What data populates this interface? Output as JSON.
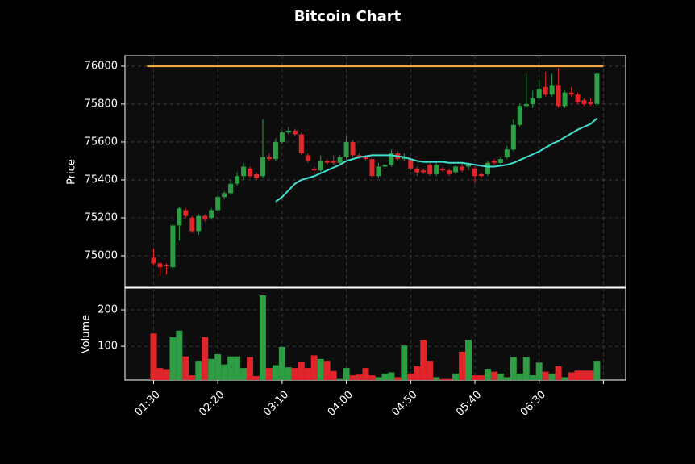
{
  "chart_data": {
    "type": "candlestick",
    "title": "Bitcoin Chart",
    "ylabel": "Price",
    "categories": [
      "01:30",
      null,
      null,
      null,
      null,
      null,
      null,
      null,
      null,
      null,
      "02:20",
      null,
      null,
      null,
      null,
      null,
      null,
      null,
      null,
      null,
      "03:10",
      null,
      null,
      null,
      null,
      null,
      null,
      null,
      null,
      null,
      "04:00",
      null,
      null,
      null,
      null,
      null,
      null,
      null,
      null,
      null,
      "04:50",
      null,
      null,
      null,
      null,
      null,
      null,
      null,
      null,
      null,
      "05:40",
      null,
      null,
      null,
      null,
      null,
      null,
      null,
      null,
      null,
      "06:30",
      null,
      null,
      null,
      null,
      null,
      null,
      null,
      null,
      null
    ],
    "open": [
      74990,
      74960,
      74950,
      74940,
      75160,
      75240,
      75200,
      75130,
      75210,
      75200,
      75240,
      75310,
      75330,
      75380,
      75420,
      75460,
      75430,
      75420,
      75520,
      75510,
      75600,
      75650,
      75660,
      75640,
      75530,
      75460,
      75450,
      75500,
      75500,
      75490,
      75520,
      75600,
      75530,
      75520,
      75510,
      75420,
      75470,
      75480,
      75540,
      75510,
      75510,
      75460,
      75450,
      75480,
      75430,
      75460,
      75450,
      75440,
      75470,
      75470,
      75460,
      75430,
      75430,
      75500,
      75490,
      75520,
      75560,
      75690,
      75790,
      75800,
      75830,
      75890,
      75850,
      75900,
      75790,
      75860,
      75850,
      75820,
      75810,
      75800
    ],
    "high": [
      75040,
      74965,
      74960,
      75170,
      75260,
      75250,
      75210,
      75220,
      75220,
      75250,
      75320,
      75340,
      75400,
      75440,
      75490,
      75470,
      75440,
      75720,
      75540,
      75620,
      75660,
      75680,
      75670,
      75650,
      75540,
      75470,
      75530,
      75510,
      75530,
      75530,
      75630,
      75610,
      75540,
      75530,
      75520,
      75490,
      75490,
      75560,
      75550,
      75540,
      75520,
      75470,
      75460,
      75490,
      75490,
      75470,
      75460,
      75480,
      75490,
      75490,
      75470,
      75440,
      75500,
      75510,
      75520,
      75580,
      75720,
      75800,
      75960,
      75870,
      75930,
      75970,
      75960,
      75990,
      75870,
      75890,
      75860,
      75830,
      75830,
      75970
    ],
    "low": [
      74950,
      74890,
      74900,
      74930,
      75080,
      75200,
      75120,
      75110,
      75180,
      75190,
      75230,
      75300,
      75320,
      75370,
      75400,
      75410,
      75400,
      75410,
      75500,
      75500,
      75590,
      75640,
      75630,
      75530,
      75490,
      75430,
      75440,
      75480,
      75480,
      75480,
      75510,
      75520,
      75510,
      75500,
      75410,
      75410,
      75460,
      75470,
      75500,
      75500,
      75450,
      75420,
      75430,
      75420,
      75420,
      75440,
      75420,
      75430,
      75440,
      75450,
      75380,
      75410,
      75420,
      75480,
      75480,
      75510,
      75550,
      75680,
      75780,
      75780,
      75820,
      75840,
      75840,
      75780,
      75780,
      75840,
      75800,
      75790,
      75790,
      75790
    ],
    "close": [
      74960,
      74940,
      74945,
      75160,
      75250,
      75210,
      75130,
      75210,
      75190,
      75240,
      75310,
      75330,
      75380,
      75420,
      75470,
      75420,
      75410,
      75520,
      75510,
      75600,
      75650,
      75660,
      75640,
      75540,
      75500,
      75450,
      75500,
      75490,
      75490,
      75520,
      75600,
      75530,
      75520,
      75510,
      75420,
      75470,
      75480,
      75540,
      75510,
      75520,
      75460,
      75440,
      75440,
      75430,
      75480,
      75450,
      75430,
      75470,
      75450,
      75480,
      75420,
      75420,
      75490,
      75490,
      75510,
      75560,
      75690,
      75790,
      75800,
      75830,
      75880,
      75850,
      75900,
      75790,
      75860,
      75850,
      75810,
      75800,
      75800,
      75960
    ],
    "volume": [
      135,
      40,
      37,
      125,
      143,
      72,
      20,
      60,
      125,
      65,
      78,
      50,
      72,
      72,
      40,
      70,
      18,
      240,
      40,
      48,
      98,
      42,
      40,
      58,
      40,
      75,
      65,
      60,
      32,
      10,
      40,
      20,
      22,
      40,
      20,
      15,
      25,
      28,
      15,
      102,
      25,
      45,
      118,
      60,
      15,
      10,
      10,
      25,
      85,
      118,
      20,
      20,
      38,
      30,
      25,
      15,
      70,
      25,
      70,
      20,
      55,
      30,
      25,
      45,
      15,
      28,
      33,
      33,
      33,
      60
    ],
    "up_color": "#2e9e45",
    "down_color": "#e0262a",
    "ma": {
      "color": "#40e0d0",
      "values": [
        null,
        null,
        null,
        null,
        null,
        null,
        null,
        null,
        null,
        null,
        null,
        null,
        null,
        null,
        null,
        null,
        null,
        null,
        null,
        75285,
        75310,
        75345,
        75380,
        75400,
        75410,
        75420,
        75435,
        75450,
        75465,
        75480,
        75500,
        75510,
        75520,
        75525,
        75530,
        75530,
        75530,
        75530,
        75525,
        75520,
        75510,
        75500,
        75495,
        75495,
        75495,
        75495,
        75490,
        75490,
        75490,
        75485,
        75480,
        75475,
        75470,
        75470,
        75475,
        75480,
        75490,
        75505,
        75520,
        75535,
        75550,
        75570,
        75590,
        75605,
        75625,
        75645,
        75665,
        75680,
        75695,
        75725
      ]
    },
    "hline": {
      "value": 76000,
      "color": "#f5a742"
    },
    "ylim": [
      74834,
      76055
    ],
    "yticks": [
      75000,
      75200,
      75400,
      75600,
      75800,
      76000
    ],
    "grid": true,
    "volume_axis": {
      "label": "Volume",
      "ylim": [
        7,
        260
      ],
      "yticks": [
        100,
        200
      ]
    }
  }
}
